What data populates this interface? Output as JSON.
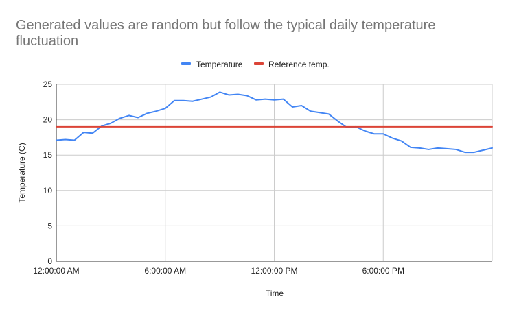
{
  "chart_data": {
    "type": "line",
    "title_lines": [
      "Generated values are random but follow the typical daily temperature",
      "fluctuation"
    ],
    "xlabel": "Time",
    "ylabel": "Temperature (C)",
    "xlim_hours": [
      0,
      24
    ],
    "ylim": [
      0,
      25
    ],
    "y_ticks": [
      0,
      5,
      10,
      15,
      20,
      25
    ],
    "x_ticks": [
      {
        "hour": 0,
        "label": "12:00:00 AM"
      },
      {
        "hour": 6,
        "label": "6:00:00 AM"
      },
      {
        "hour": 12,
        "label": "12:00:00 PM"
      },
      {
        "hour": 18,
        "label": "6:00:00 PM"
      }
    ],
    "legend_position": "top",
    "grid": true,
    "series": [
      {
        "name": "Temperature",
        "color": "#4285f4",
        "x_hours": [
          0,
          0.5,
          1,
          1.5,
          2,
          2.5,
          3,
          3.5,
          4,
          4.5,
          5,
          5.5,
          6,
          6.5,
          7,
          7.5,
          8,
          8.5,
          9,
          9.5,
          10,
          10.5,
          11,
          11.5,
          12,
          12.5,
          13,
          13.5,
          14,
          14.5,
          15,
          15.5,
          16,
          16.5,
          17,
          17.5,
          18,
          18.5,
          19,
          19.5,
          20,
          20.5,
          21,
          21.5,
          22,
          22.5,
          23,
          23.5,
          24
        ],
        "values": [
          17.1,
          17.2,
          17.1,
          18.2,
          18.1,
          19.1,
          19.5,
          20.2,
          20.6,
          20.3,
          20.9,
          21.2,
          21.6,
          22.7,
          22.7,
          22.6,
          22.9,
          23.2,
          23.9,
          23.5,
          23.6,
          23.4,
          22.8,
          22.9,
          22.8,
          22.9,
          21.8,
          22.0,
          21.2,
          21.0,
          20.8,
          19.8,
          18.9,
          19.0,
          18.4,
          18.0,
          18.0,
          17.4,
          17.0,
          16.1,
          16.0,
          15.8,
          16.0,
          15.9,
          15.8,
          15.4,
          15.4,
          15.7,
          16.0
        ]
      },
      {
        "name": "Reference temp.",
        "color": "#db4437",
        "x_hours": [
          0,
          24
        ],
        "values": [
          19,
          19
        ]
      }
    ]
  }
}
